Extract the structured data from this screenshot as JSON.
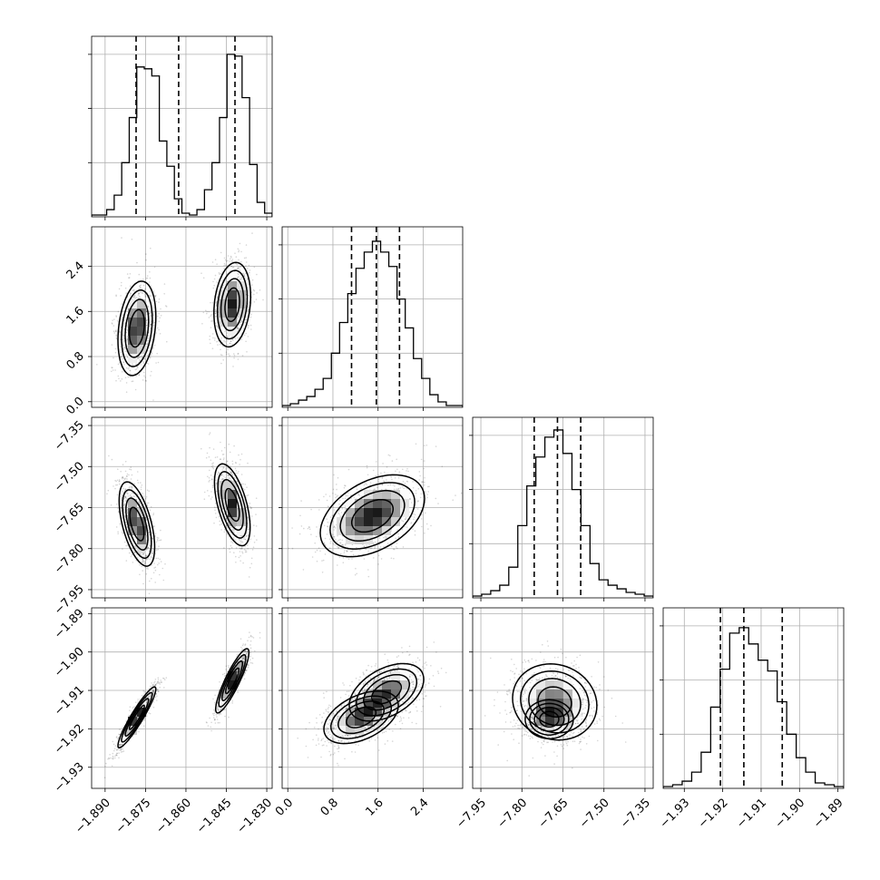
{
  "chart_data": {
    "type": "corner",
    "grid": true,
    "parameters": [
      {
        "ticks": [
          -1.89,
          -1.875,
          -1.86,
          -1.845,
          -1.83
        ],
        "tick_labels": [
          "−1.890",
          "−1.875",
          "−1.860",
          "−1.845",
          "−1.830"
        ],
        "range": [
          -1.895,
          -1.828
        ],
        "quantiles": [
          -1.8785,
          -1.8627,
          -1.8418
        ],
        "hist": [
          0.01,
          0.01,
          0.04,
          0.12,
          0.3,
          0.55,
          0.83,
          0.82,
          0.78,
          0.42,
          0.28,
          0.1,
          0.02,
          0.01,
          0.04,
          0.15,
          0.3,
          0.55,
          0.9,
          0.89,
          0.66,
          0.29,
          0.08,
          0.02
        ]
      },
      {
        "ticks": [
          0.0,
          0.8,
          1.6,
          2.4
        ],
        "tick_labels": [
          "0.0",
          "0.8",
          "1.6",
          "2.4"
        ],
        "range": [
          -0.1,
          3.1
        ],
        "quantiles": [
          1.13,
          1.57,
          1.98
        ],
        "hist": [
          0.01,
          0.02,
          0.04,
          0.06,
          0.1,
          0.16,
          0.3,
          0.47,
          0.63,
          0.77,
          0.86,
          0.92,
          0.86,
          0.78,
          0.6,
          0.44,
          0.27,
          0.16,
          0.07,
          0.03,
          0.01,
          0.01
        ]
      },
      {
        "ticks": [
          -7.95,
          -7.8,
          -7.65,
          -7.5,
          -7.35
        ],
        "tick_labels": [
          "−7.95",
          "−7.80",
          "−7.65",
          "−7.50",
          "−7.35"
        ],
        "range": [
          -7.98,
          -7.32
        ],
        "quantiles": [
          -7.755,
          -7.67,
          -7.585
        ],
        "hist": [
          0.01,
          0.02,
          0.04,
          0.07,
          0.17,
          0.4,
          0.62,
          0.78,
          0.89,
          0.93,
          0.8,
          0.6,
          0.4,
          0.19,
          0.1,
          0.07,
          0.05,
          0.03,
          0.02,
          0.01
        ]
      },
      {
        "ticks": [
          -1.93,
          -1.92,
          -1.91,
          -1.9,
          -1.89
        ],
        "tick_labels": [
          "−1.93",
          "−1.92",
          "−1.91",
          "−1.90",
          "−1.89"
        ],
        "range": [
          -1.9355,
          -1.8885
        ],
        "quantiles": [
          -1.9206,
          -1.9145,
          -1.9045
        ],
        "hist": [
          0.01,
          0.02,
          0.04,
          0.09,
          0.2,
          0.45,
          0.66,
          0.86,
          0.89,
          0.8,
          0.71,
          0.65,
          0.48,
          0.3,
          0.17,
          0.09,
          0.03,
          0.02,
          0.01
        ]
      }
    ],
    "pairs": [
      {
        "row": 1,
        "col": 0,
        "blobs": [
          {
            "cx": -1.8782,
            "cy": 1.3,
            "sx": 0.0032,
            "sy": 0.38,
            "rho": 0.25,
            "w": 1.0
          },
          {
            "cx": -1.8428,
            "cy": 1.72,
            "sx": 0.0031,
            "sy": 0.34,
            "rho": 0.2,
            "w": 1.0
          }
        ]
      },
      {
        "row": 2,
        "col": 0,
        "blobs": [
          {
            "cx": -1.8782,
            "cy": -7.71,
            "sx": 0.003,
            "sy": 0.07,
            "rho": -0.55,
            "w": 1.0
          },
          {
            "cx": -1.8428,
            "cy": -7.64,
            "sx": 0.003,
            "sy": 0.068,
            "rho": -0.55,
            "w": 1.0
          }
        ]
      },
      {
        "row": 2,
        "col": 1,
        "blobs": [
          {
            "cx": 1.5,
            "cy": -7.68,
            "sx": 0.42,
            "sy": 0.068,
            "rho": 0.42,
            "w": 1.0
          }
        ]
      },
      {
        "row": 3,
        "col": 0,
        "blobs": [
          {
            "cx": -1.8782,
            "cy": -1.917,
            "sx": 0.0032,
            "sy": 0.0036,
            "rho": 0.93,
            "w": 1.0
          },
          {
            "cx": -1.8428,
            "cy": -1.9075,
            "sx": 0.0028,
            "sy": 0.0038,
            "rho": 0.88,
            "w": 1.0
          }
        ]
      },
      {
        "row": 3,
        "col": 1,
        "blobs": [
          {
            "cx": 1.3,
            "cy": -1.917,
            "sx": 0.3,
            "sy": 0.0031,
            "rho": 0.45,
            "w": 1.0
          },
          {
            "cx": 1.75,
            "cy": -1.9105,
            "sx": 0.3,
            "sy": 0.0034,
            "rho": 0.45,
            "w": 1.0
          }
        ]
      },
      {
        "row": 3,
        "col": 2,
        "blobs": [
          {
            "cx": -7.68,
            "cy": -1.913,
            "sx": 0.07,
            "sy": 0.0045,
            "rho": -0.1,
            "w": 1.0
          },
          {
            "cx": -7.7,
            "cy": -1.9175,
            "sx": 0.04,
            "sy": 0.0023,
            "rho": 0.0,
            "w": 0.7
          }
        ]
      }
    ]
  }
}
